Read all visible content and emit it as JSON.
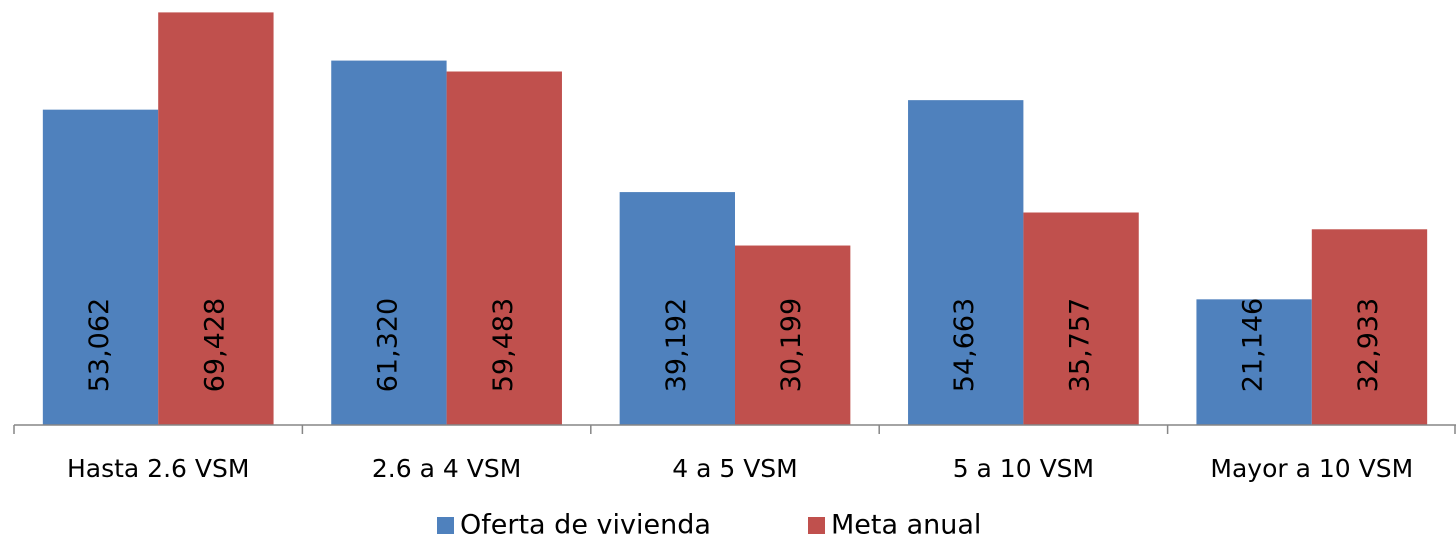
{
  "chart_data": {
    "type": "bar",
    "categories": [
      "Hasta 2.6 VSM",
      "2.6 a 4 VSM",
      "4 a 5 VSM",
      "5 a 10 VSM",
      "Mayor a 10 VSM"
    ],
    "series": [
      {
        "name": "Oferta de vivienda",
        "color": "#4f81bd",
        "values": [
          53062,
          61320,
          39192,
          54663,
          21146
        ],
        "value_labels": [
          "53,062",
          "61,320",
          "39,192",
          "54,663",
          "21,146"
        ]
      },
      {
        "name": "Meta anual",
        "color": "#c0504d",
        "values": [
          69428,
          59483,
          30199,
          35757,
          32933
        ],
        "value_labels": [
          "69,428",
          "59,483",
          "30,199",
          "35,757",
          "32,933"
        ]
      }
    ],
    "ylim": [
      0,
      70000
    ],
    "legend": "bottom"
  }
}
